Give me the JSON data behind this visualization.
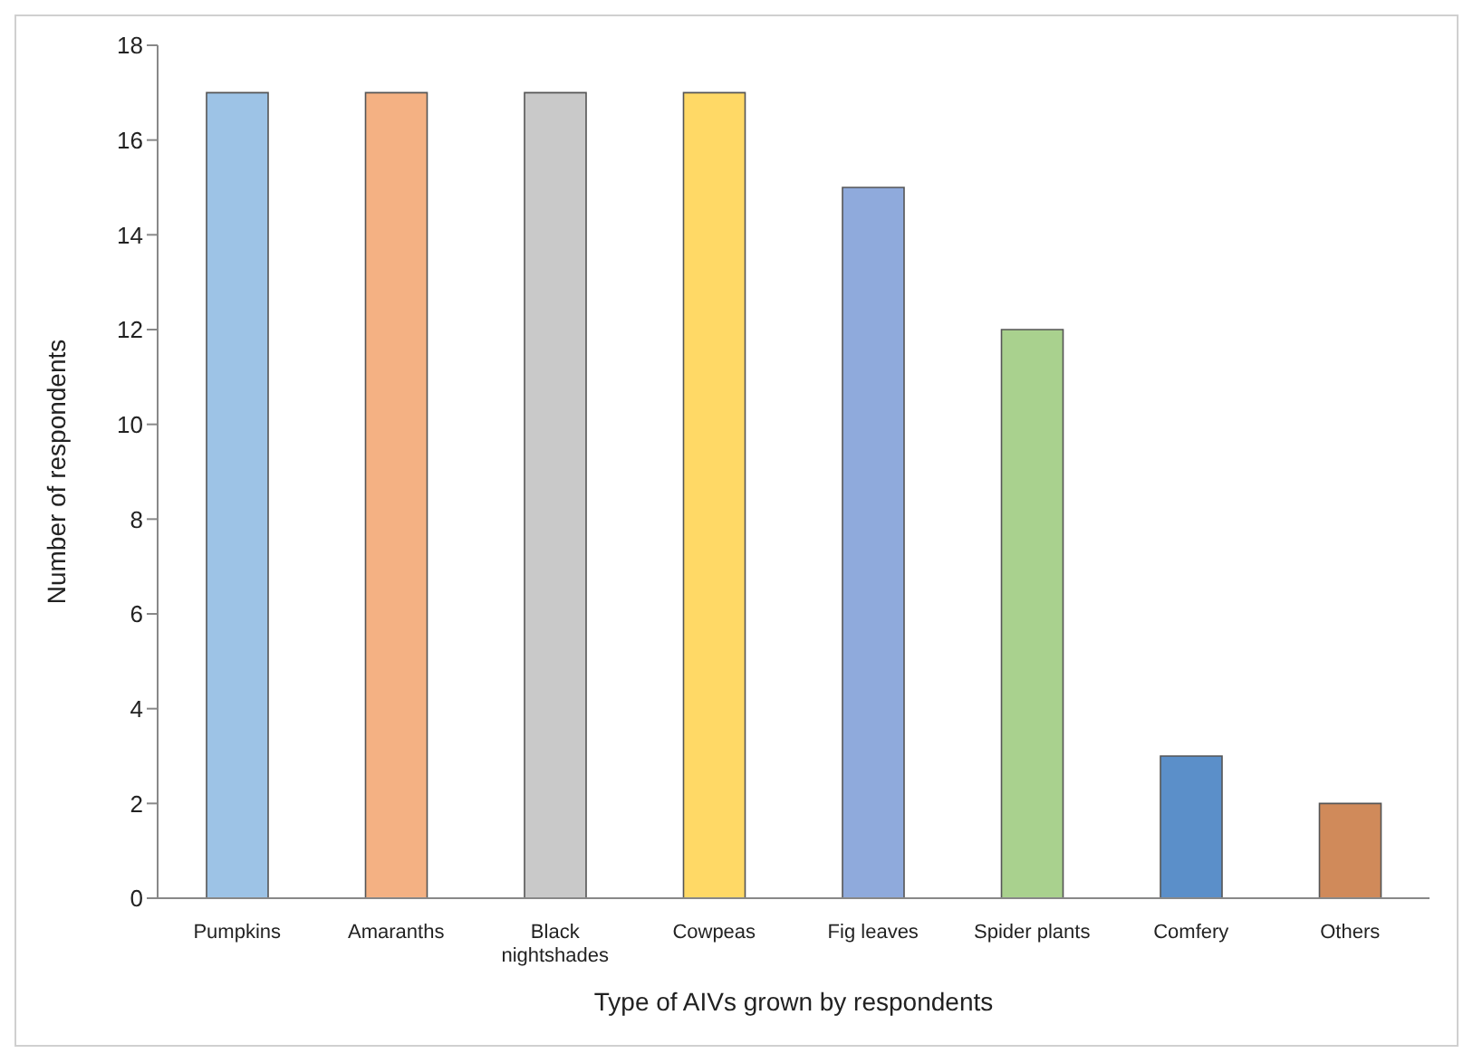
{
  "chart_data": {
    "type": "bar",
    "xlabel": "Type of AIVs grown by respondents",
    "ylabel": "Number of respondents",
    "categories": [
      "Pumpkins",
      "Amaranths",
      "Black nightshades",
      "Cowpeas",
      "Fig leaves",
      "Spider plants",
      "Comfery",
      "Others"
    ],
    "values": [
      17,
      17,
      17,
      17,
      15,
      12,
      3,
      2
    ],
    "colors": [
      "#9dc3e6",
      "#f4b183",
      "#c9c9c9",
      "#ffd966",
      "#8faadc",
      "#a9d18e",
      "#5b8fc9",
      "#d08a5a"
    ],
    "ylim": [
      0,
      18
    ],
    "yticks": [
      0,
      2,
      4,
      6,
      8,
      10,
      12,
      14,
      16,
      18
    ],
    "grid": false,
    "legend": false
  }
}
